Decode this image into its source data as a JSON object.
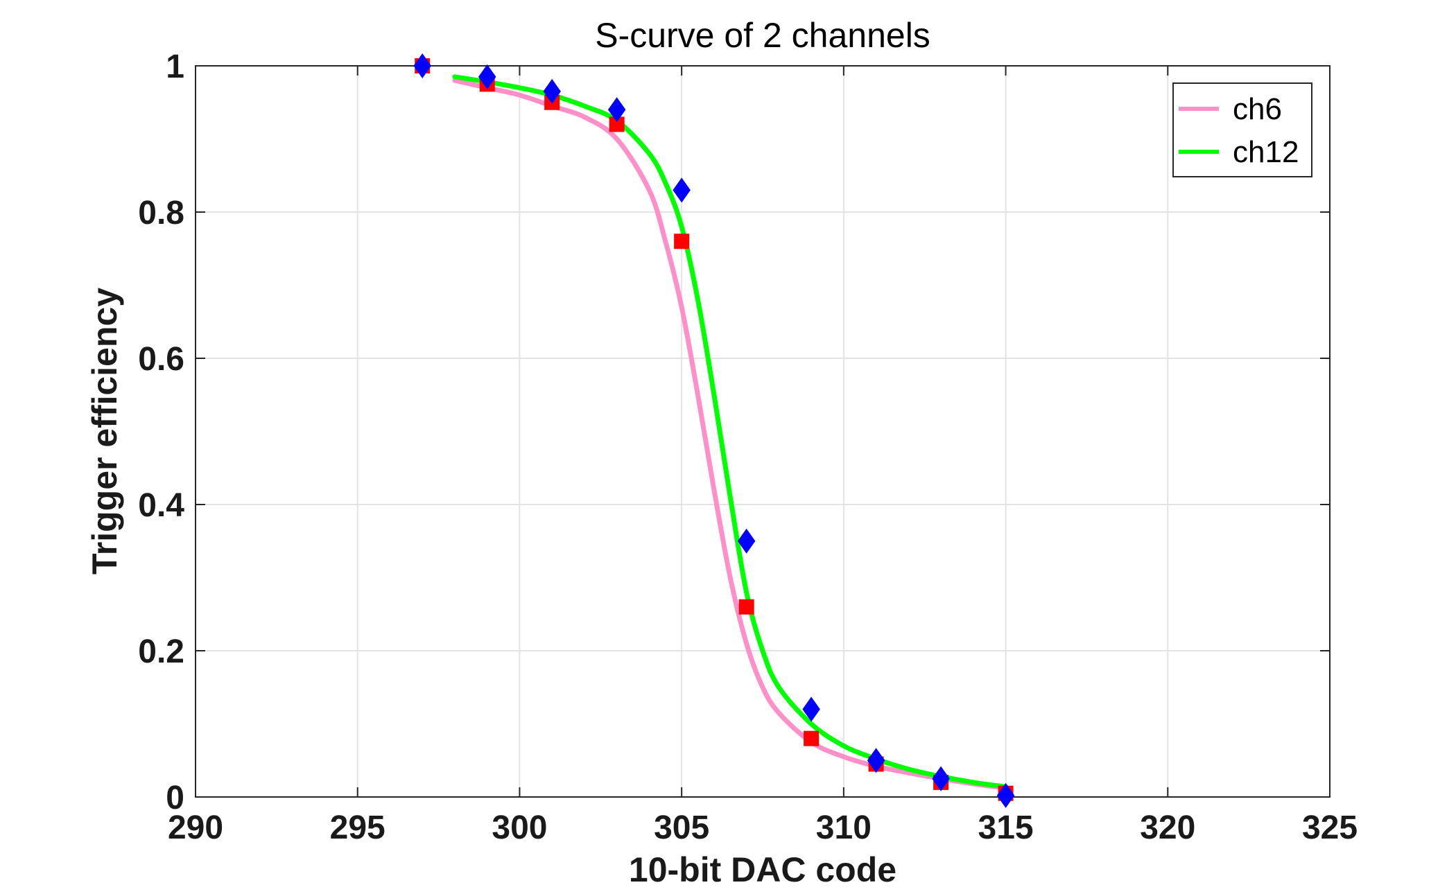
{
  "chart_data": {
    "type": "scatter",
    "title": "S-curve of 2 channels",
    "xlabel": "10-bit DAC code",
    "ylabel": "Trigger efficiency",
    "xlim": [
      290,
      325
    ],
    "ylim": [
      0,
      1
    ],
    "x_ticks": [
      290,
      295,
      300,
      305,
      310,
      315,
      320,
      325
    ],
    "y_ticks": [
      0,
      0.2,
      0.4,
      0.6,
      0.8,
      1
    ],
    "y_tick_labels": [
      "0",
      "0.2",
      "0.4",
      "0.6",
      "0.8",
      "1"
    ],
    "grid": true,
    "legend_position": "top-right",
    "series": [
      {
        "name": "ch6",
        "color": "#ff8fc8",
        "marker": "square",
        "marker_color": "#ff0000",
        "points": {
          "x": [
            297,
            299,
            301,
            303,
            305,
            307,
            309,
            311,
            313,
            315
          ],
          "y": [
            1.0,
            0.975,
            0.95,
            0.92,
            0.76,
            0.26,
            0.08,
            0.045,
            0.02,
            0.005
          ]
        },
        "fit": {
          "x": [
            298,
            299,
            300,
            301,
            302,
            303,
            304,
            304.5,
            305,
            305.5,
            306,
            306.5,
            307,
            307.5,
            308,
            309,
            310,
            311,
            312,
            313,
            314,
            315
          ],
          "y": [
            0.98,
            0.97,
            0.96,
            0.945,
            0.93,
            0.9,
            0.83,
            0.76,
            0.67,
            0.55,
            0.42,
            0.3,
            0.21,
            0.15,
            0.115,
            0.075,
            0.055,
            0.042,
            0.033,
            0.025,
            0.018,
            0.012
          ]
        }
      },
      {
        "name": "ch12",
        "color": "#00ff00",
        "marker": "diamond",
        "marker_color": "#0000ff",
        "points": {
          "x": [
            297,
            299,
            301,
            303,
            305,
            307,
            309,
            311,
            313,
            315
          ],
          "y": [
            1.0,
            0.985,
            0.965,
            0.94,
            0.83,
            0.35,
            0.12,
            0.05,
            0.025,
            0.002
          ]
        },
        "fit": {
          "x": [
            298,
            299,
            300,
            301,
            302,
            303,
            304,
            304.5,
            305,
            305.5,
            306,
            306.5,
            307,
            307.5,
            308,
            309,
            310,
            311,
            312,
            313,
            314,
            315
          ],
          "y": [
            0.985,
            0.978,
            0.97,
            0.96,
            0.945,
            0.925,
            0.88,
            0.84,
            0.78,
            0.68,
            0.55,
            0.41,
            0.28,
            0.2,
            0.15,
            0.1,
            0.07,
            0.052,
            0.038,
            0.028,
            0.02,
            0.014
          ]
        }
      }
    ]
  }
}
